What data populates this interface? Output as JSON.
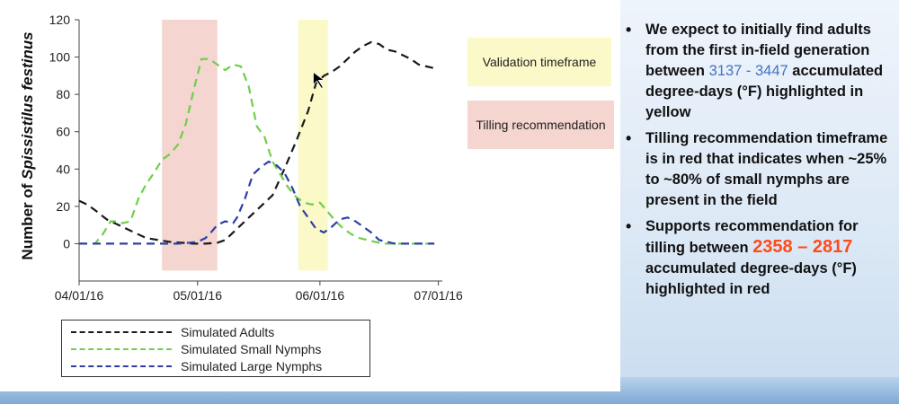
{
  "chart_data": {
    "type": "line",
    "ylabel": "Number of Spissistilus festinus",
    "xlabel": "",
    "ylim": [
      -20,
      120
    ],
    "yticks": [
      0,
      20,
      40,
      60,
      80,
      100,
      120
    ],
    "xlim": [
      0,
      92
    ],
    "xticks": [
      {
        "label": "04/01/16",
        "day": 0
      },
      {
        "label": "05/01/16",
        "day": 30
      },
      {
        "label": "06/01/16",
        "day": 61
      },
      {
        "label": "07/01/16",
        "day": 91
      }
    ],
    "bands": [
      {
        "name": "Tilling recommendation",
        "x0": 21,
        "x1": 35,
        "color": "#f5d5cf"
      },
      {
        "name": "Validation timeframe",
        "x0": 55.5,
        "x1": 63,
        "color": "#fbf9c8"
      }
    ],
    "series": [
      {
        "name": "Simulated Adults",
        "color": "#1a1a1a",
        "x": [
          0,
          2,
          4,
          7,
          10,
          14,
          17,
          20,
          23,
          26,
          29,
          32,
          35,
          37,
          40,
          43,
          46,
          49,
          52,
          55,
          58,
          60,
          62,
          64,
          66,
          68,
          70,
          72,
          74,
          76,
          78,
          80,
          82,
          84,
          86,
          88,
          90
        ],
        "y": [
          23,
          21,
          18,
          13,
          10,
          6,
          3,
          2,
          1,
          0.5,
          0,
          0,
          0.5,
          2,
          8,
          14,
          20,
          26,
          40,
          55,
          71,
          86,
          90,
          92,
          95,
          99,
          103,
          106,
          108,
          107,
          104,
          103,
          101,
          99,
          96,
          95,
          94
        ]
      },
      {
        "name": "Simulated Small Nymphs",
        "color": "#6fcf4a",
        "x": [
          0,
          4,
          6,
          8,
          10,
          11,
          13,
          15,
          17,
          19,
          21,
          23,
          25,
          27,
          29,
          31,
          33,
          35,
          37,
          39,
          41,
          43,
          45,
          47,
          49,
          51,
          53,
          55,
          57,
          59,
          61,
          63,
          65,
          67,
          69,
          71,
          73,
          75,
          77,
          79,
          81,
          83,
          85,
          87,
          90
        ],
        "y": [
          0,
          0,
          5,
          12,
          12,
          11,
          12,
          24,
          32,
          38,
          45,
          48,
          53,
          64,
          82,
          99,
          99,
          96,
          93,
          96,
          95,
          84,
          63,
          57,
          44,
          37,
          30,
          25,
          22,
          21,
          22,
          17,
          12,
          8,
          5,
          3,
          2,
          1,
          0,
          0,
          0,
          0,
          0,
          0,
          0
        ]
      },
      {
        "name": "Simulated Large Nymphs",
        "color": "#2d3fa6",
        "x": [
          0,
          10,
          20,
          25,
          28,
          30,
          32,
          33,
          35,
          37,
          39,
          40,
          42,
          44,
          46,
          48,
          50,
          52,
          54,
          56,
          58,
          60,
          62,
          64,
          66,
          68,
          70,
          72,
          74,
          76,
          78,
          80,
          85,
          90
        ],
        "y": [
          0,
          0,
          0,
          0,
          0.5,
          1,
          3,
          5,
          10,
          12,
          11,
          14,
          24,
          37,
          41,
          44,
          42,
          38,
          30,
          20,
          14,
          8,
          6,
          9,
          13,
          14,
          12,
          9,
          6,
          2,
          1,
          0,
          0,
          0
        ]
      }
    ],
    "legend": [
      {
        "label": "Simulated Adults",
        "color": "#1a1a1a"
      },
      {
        "label": "Simulated Small Nymphs",
        "color": "#6fcf4a"
      },
      {
        "label": "Simulated Large Nymphs",
        "color": "#2d3fa6"
      }
    ]
  },
  "side_labels": {
    "validation": "Validation timeframe",
    "tilling": "Tilling recommendation"
  },
  "bullets": [
    {
      "before": "We expect to initially find adults from the first in-field generation between ",
      "highlight": "3137 - 3447",
      "after": " accumulated degree-days (°F) highlighted in yellow"
    },
    {
      "text": "Tilling recommendation timeframe is in red that indicates when ~25% to ~80% of small nymphs are present in the field"
    },
    {
      "before": "Supports recommendation for tilling between ",
      "highlight": "2358 – 2817",
      "after": " accumulated degree-days (°F) highlighted in red"
    }
  ]
}
